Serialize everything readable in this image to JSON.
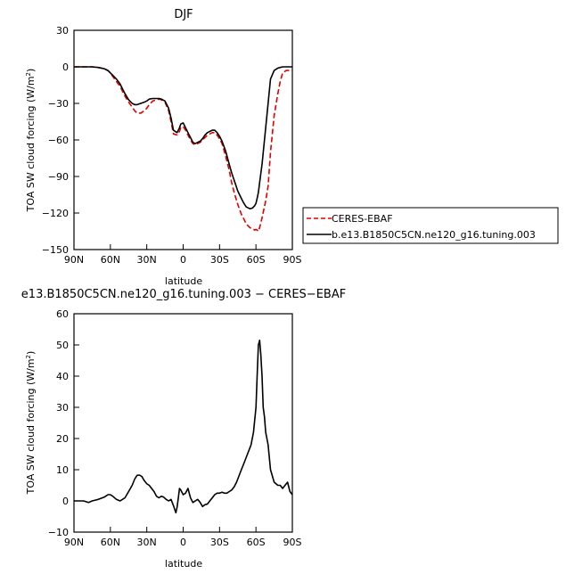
{
  "chart_data": [
    {
      "type": "line",
      "title": "DJF",
      "xlabel": "latitude",
      "ylabel": "TOA SW cloud forcing (W/m²)",
      "ylabel_base": "TOA SW cloud forcing (W/m",
      "ylabel_sup": "2",
      "ylabel_tail": ")",
      "xlim": [
        90,
        -90
      ],
      "ylim": [
        -150,
        30
      ],
      "xticks": [
        90,
        60,
        30,
        0,
        -30,
        -60,
        -90
      ],
      "xticklabels": [
        "90N",
        "60N",
        "30N",
        "0",
        "30S",
        "60S",
        "90S"
      ],
      "yticks": [
        30,
        0,
        -30,
        -60,
        -90,
        -120,
        -150
      ],
      "yticklabels": [
        "30",
        "0",
        "−30",
        "−60",
        "−90",
        "−120",
        "−150"
      ],
      "legend": {
        "placement": "right",
        "entries": [
          "CERES-EBAF",
          "b.e13.B1850C5CN.ne120_g16.tuning.003"
        ]
      },
      "series": [
        {
          "name": "CERES-EBAF",
          "color": "#e00000",
          "dash": true,
          "x": [
            90,
            85,
            80,
            75,
            70,
            65,
            62,
            60,
            58,
            55,
            52,
            50,
            48,
            45,
            42,
            40,
            38,
            35,
            32,
            30,
            28,
            25,
            22,
            20,
            18,
            15,
            12,
            10,
            8,
            5,
            3,
            2,
            0,
            -2,
            -4,
            -6,
            -8,
            -10,
            -12,
            -14,
            -16,
            -18,
            -20,
            -22,
            -24,
            -26,
            -28,
            -30,
            -32,
            -35,
            -38,
            -40,
            -42,
            -45,
            -48,
            -50,
            -52,
            -55,
            -57,
            -59,
            -60,
            -61,
            -62,
            -63,
            -65,
            -68,
            -70,
            -72,
            -75,
            -78,
            -80,
            -82,
            -85,
            -88,
            -90
          ],
          "y": [
            0,
            0,
            0,
            0,
            -0.5,
            -1.5,
            -3,
            -5,
            -8,
            -12,
            -16,
            -20,
            -24,
            -29,
            -33,
            -36,
            -38,
            -38,
            -36,
            -34,
            -31,
            -28,
            -27,
            -26.5,
            -27,
            -29,
            -36,
            -45,
            -55,
            -56,
            -53,
            -50,
            -49,
            -52,
            -56,
            -60,
            -63,
            -64,
            -63,
            -62,
            -60,
            -58,
            -56,
            -55,
            -54,
            -54,
            -56,
            -59,
            -63,
            -73,
            -85,
            -95,
            -103,
            -113,
            -121,
            -125,
            -129,
            -132,
            -133,
            -134,
            -133.5,
            -134,
            -135,
            -132,
            -124,
            -110,
            -98,
            -70,
            -40,
            -22,
            -12,
            -5,
            -3,
            -3,
            -3
          ]
        },
        {
          "name": "b.e13.B1850C5CN.ne120_g16.tuning.003",
          "color": "#000000",
          "dash": false,
          "x": [
            90,
            85,
            80,
            75,
            70,
            65,
            62,
            60,
            58,
            55,
            52,
            50,
            48,
            45,
            42,
            40,
            38,
            35,
            32,
            30,
            28,
            25,
            22,
            20,
            18,
            15,
            12,
            10,
            8,
            5,
            3,
            2,
            0,
            -2,
            -4,
            -6,
            -8,
            -10,
            -12,
            -14,
            -16,
            -18,
            -20,
            -22,
            -24,
            -26,
            -28,
            -30,
            -32,
            -35,
            -38,
            -40,
            -42,
            -45,
            -48,
            -50,
            -52,
            -55,
            -57,
            -59,
            -60,
            -61,
            -62,
            -63,
            -65,
            -68,
            -70,
            -72,
            -75,
            -78,
            -80,
            -82,
            -85,
            -88,
            -90
          ],
          "y": [
            0,
            0,
            0,
            0,
            -0.5,
            -1.5,
            -3,
            -5,
            -7,
            -10,
            -14,
            -18,
            -22,
            -27,
            -30,
            -31,
            -31,
            -30,
            -29,
            -28,
            -26.5,
            -26,
            -26,
            -26,
            -26.5,
            -28,
            -34,
            -42,
            -52,
            -54,
            -50,
            -47,
            -46,
            -50,
            -54,
            -58,
            -62,
            -63,
            -62,
            -61,
            -59,
            -56,
            -54,
            -53,
            -52,
            -52,
            -54,
            -57,
            -61,
            -69,
            -80,
            -87,
            -93,
            -102,
            -108,
            -112,
            -115,
            -116.5,
            -116,
            -114,
            -112,
            -108,
            -103,
            -95,
            -80,
            -50,
            -30,
            -10,
            -3,
            -1,
            -0.5,
            0,
            0,
            0,
            0
          ]
        }
      ]
    },
    {
      "type": "line",
      "title": "e13.B1850C5CN.ne120_g16.tuning.003 − CERES−EBAF",
      "xlabel": "latitude",
      "ylabel": "TOA SW cloud forcing (W/m²)",
      "ylabel_base": "TOA SW cloud forcing (W/m",
      "ylabel_sup": "2",
      "ylabel_tail": ")",
      "xlim": [
        90,
        -90
      ],
      "ylim": [
        -10,
        60
      ],
      "xticks": [
        90,
        60,
        30,
        0,
        -30,
        -60,
        -90
      ],
      "xticklabels": [
        "90N",
        "60N",
        "30N",
        "0",
        "30S",
        "60S",
        "90S"
      ],
      "yticks": [
        60,
        50,
        40,
        30,
        20,
        10,
        0,
        -10
      ],
      "yticklabels": [
        "60",
        "50",
        "40",
        "30",
        "20",
        "10",
        "0",
        "−10"
      ],
      "series": [
        {
          "color": "#000000",
          "dash": false,
          "x": [
            90,
            85,
            82,
            78,
            75,
            72,
            70,
            68,
            65,
            62,
            60,
            58,
            55,
            52,
            50,
            48,
            45,
            42,
            40,
            38,
            36,
            34,
            32,
            30,
            28,
            26,
            24,
            22,
            20,
            18,
            16,
            14,
            12,
            10,
            8,
            6,
            5,
            4,
            3,
            2,
            0,
            -2,
            -4,
            -6,
            -8,
            -10,
            -12,
            -14,
            -16,
            -18,
            -20,
            -22,
            -24,
            -26,
            -28,
            -30,
            -32,
            -34,
            -36,
            -38,
            -40,
            -42,
            -44,
            -46,
            -48,
            -50,
            -52,
            -54,
            -56,
            -58,
            -59,
            -60,
            -61,
            -62,
            -63,
            -64,
            -65,
            -66,
            -67,
            -68,
            -70,
            -72,
            -75,
            -78,
            -80,
            -82,
            -84,
            -86,
            -88,
            -90
          ],
          "y": [
            0,
            0,
            0,
            -0.5,
            0,
            0.3,
            0.5,
            0.8,
            1.2,
            2,
            2,
            1.5,
            0.5,
            0,
            0.5,
            1,
            3,
            5,
            7,
            8.2,
            8.3,
            7.8,
            6.5,
            5.5,
            5,
            4,
            3,
            1.5,
            1,
            1.5,
            1.2,
            0.5,
            0,
            0.5,
            -1.5,
            -3.8,
            -2,
            1,
            4,
            3.5,
            2,
            2.5,
            4,
            1,
            -0.5,
            0,
            0.5,
            -0.5,
            -1.8,
            -1.2,
            -1,
            0,
            1,
            2,
            2.5,
            2.5,
            2.8,
            2.5,
            2.5,
            3,
            3.5,
            4.5,
            6,
            8,
            10,
            12,
            14,
            16,
            18,
            22,
            26,
            30,
            40,
            50,
            51.5,
            47,
            40,
            30,
            27,
            22,
            18,
            10,
            6,
            5,
            5,
            4,
            5,
            6,
            3,
            2
          ]
        }
      ]
    }
  ]
}
